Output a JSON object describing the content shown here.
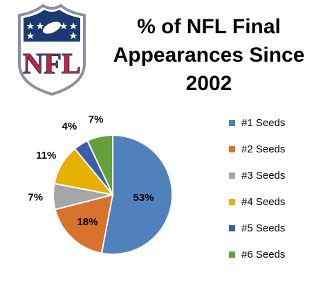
{
  "title_lines": [
    "% of NFL Final",
    "Appearances Since",
    "2002"
  ],
  "logo": {
    "text": "NFL",
    "colors": {
      "navy": "#1b3a73",
      "red": "#d3202a",
      "white": "#ffffff"
    }
  },
  "chart_data": {
    "type": "pie",
    "title": "% of NFL Final Appearances Since 2002",
    "categories": [
      "#1 Seeds",
      "#2 Seeds",
      "#3 Seeds",
      "#4 Seeds",
      "#5 Seeds",
      "#6 Seeds"
    ],
    "values": [
      53,
      18,
      7,
      11,
      4,
      7
    ],
    "labels": [
      "53%",
      "18%",
      "7%",
      "11%",
      "4%",
      "7%"
    ],
    "colors": [
      "#4f81bd",
      "#d9722c",
      "#a5a5a5",
      "#e6b000",
      "#3d5dab",
      "#66a03c"
    ],
    "legend_position": "right"
  }
}
